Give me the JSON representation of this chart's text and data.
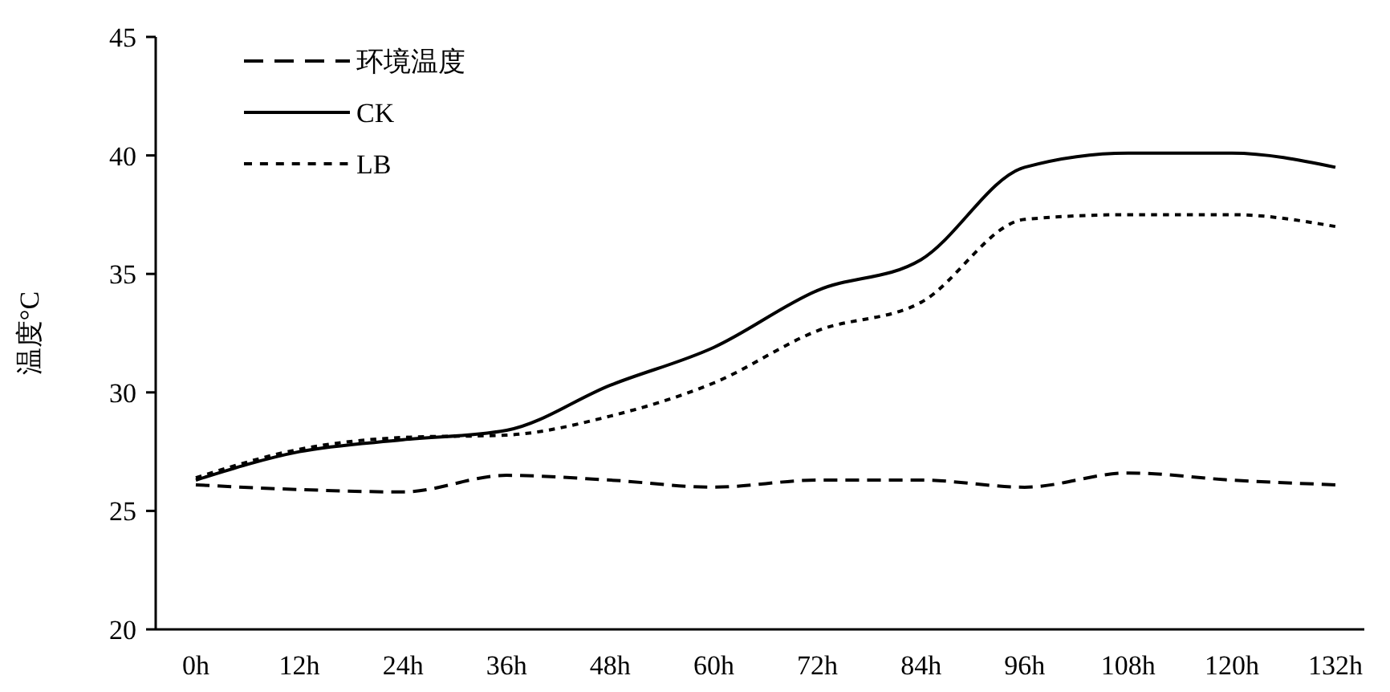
{
  "chart_data": {
    "type": "line",
    "ylabel": "温度°C",
    "categories": [
      "0h",
      "12h",
      "24h",
      "36h",
      "48h",
      "60h",
      "72h",
      "84h",
      "96h",
      "108h",
      "120h",
      "132h"
    ],
    "series": [
      {
        "name": "环境温度",
        "color": "#000000",
        "line_style": "dashed",
        "values": [
          26.1,
          25.9,
          25.8,
          26.5,
          26.3,
          26.0,
          26.3,
          26.3,
          26.0,
          26.6,
          26.3,
          26.1
        ]
      },
      {
        "name": "CK",
        "color": "#000000",
        "line_style": "solid",
        "values": [
          26.3,
          27.5,
          28.0,
          28.4,
          30.3,
          31.9,
          34.3,
          35.6,
          39.5,
          40.1,
          40.1,
          39.5
        ]
      },
      {
        "name": "LB",
        "color": "#000000",
        "line_style": "dashed",
        "values": [
          26.4,
          27.6,
          28.1,
          28.2,
          29.0,
          30.4,
          32.6,
          33.8,
          37.3,
          37.5,
          37.5,
          37.0
        ]
      }
    ],
    "ylim": [
      20,
      45
    ],
    "yticks": [
      20,
      25,
      30,
      35,
      40,
      45
    ],
    "grid": false,
    "legend": "top left",
    "marker": "none"
  }
}
